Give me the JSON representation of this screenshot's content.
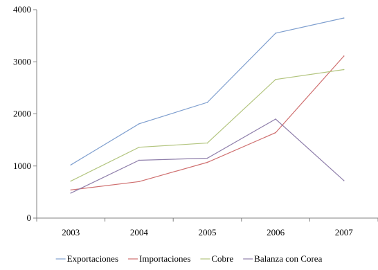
{
  "chart_data": {
    "type": "line",
    "title": "",
    "xlabel": "",
    "ylabel": "",
    "categories": [
      "2003",
      "2004",
      "2005",
      "2006",
      "2007"
    ],
    "ylim": [
      0,
      4000
    ],
    "yticks": [
      0,
      1000,
      2000,
      3000,
      4000
    ],
    "grid": false,
    "legend_position": "bottom",
    "series": [
      {
        "name": "Exportaciones",
        "color": "#7f9fcf",
        "values": [
          1020,
          1810,
          2220,
          3550,
          3840
        ]
      },
      {
        "name": "Importaciones",
        "color": "#cf6f6f",
        "values": [
          540,
          700,
          1070,
          1640,
          3110
        ]
      },
      {
        "name": "Cobre",
        "color": "#b3c57f",
        "values": [
          710,
          1360,
          1440,
          2660,
          2850
        ]
      },
      {
        "name": "Balanza con Corea",
        "color": "#8f7fab",
        "values": [
          480,
          1110,
          1150,
          1900,
          720
        ]
      }
    ]
  }
}
